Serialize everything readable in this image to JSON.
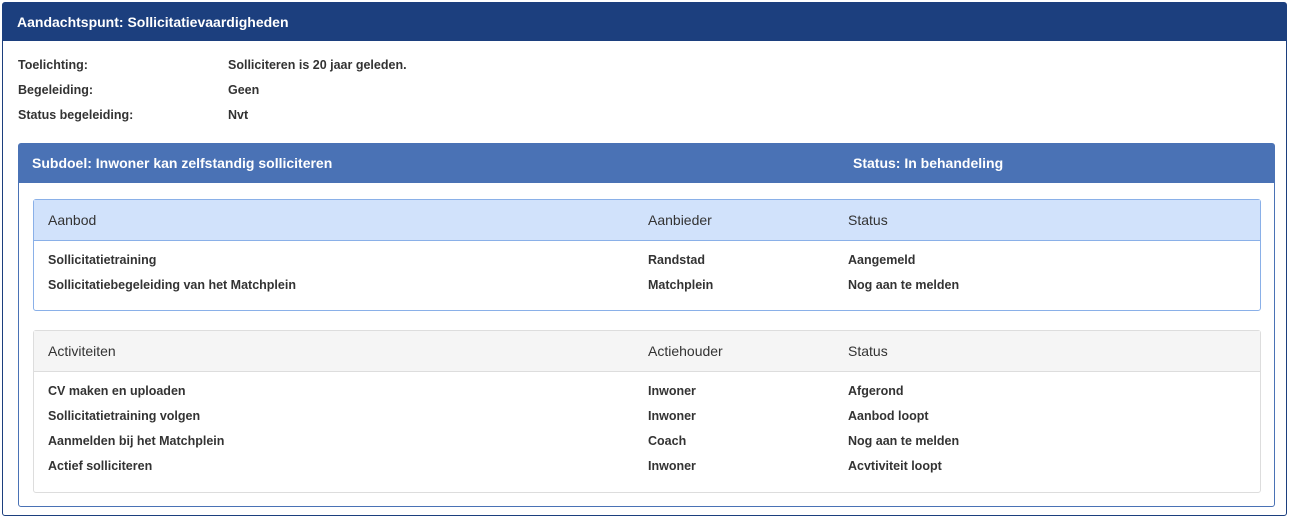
{
  "title": "Aandachtspunt: Sollicitatievaardigheden",
  "info": [
    {
      "label": "Toelichting:",
      "value": "Solliciteren is 20 jaar geleden."
    },
    {
      "label": "Begeleiding:",
      "value": "Geen"
    },
    {
      "label": "Status begeleiding:",
      "value": "Nvt"
    }
  ],
  "subdoel": {
    "title": "Subdoel: Inwoner kan zelfstandig solliciteren",
    "status": "Status: In behandeling"
  },
  "aanbod": {
    "headers": [
      "Aanbod",
      "Aanbieder",
      "Status"
    ],
    "rows": [
      [
        "Sollicitatietraining",
        "Randstad",
        "Aangemeld"
      ],
      [
        "Sollicitatiebegeleiding van het Matchplein",
        "Matchplein",
        "Nog aan te melden"
      ]
    ]
  },
  "activiteiten": {
    "headers": [
      "Activiteiten",
      "Actiehouder",
      "Status"
    ],
    "rows": [
      [
        "CV maken en uploaden",
        "Inwoner",
        "Afgerond"
      ],
      [
        "Sollicitatietraining volgen",
        "Inwoner",
        "Aanbod loopt"
      ],
      [
        "Aanmelden bij het Matchplein",
        "Coach",
        "Nog aan te melden"
      ],
      [
        "Actief solliciteren",
        "Inwoner",
        "Acvtiviteit loopt"
      ]
    ]
  },
  "colors": {
    "header": "#1c3f7e",
    "subheader": "#4a72b5",
    "aanbod_header": "#d1e2fb"
  }
}
